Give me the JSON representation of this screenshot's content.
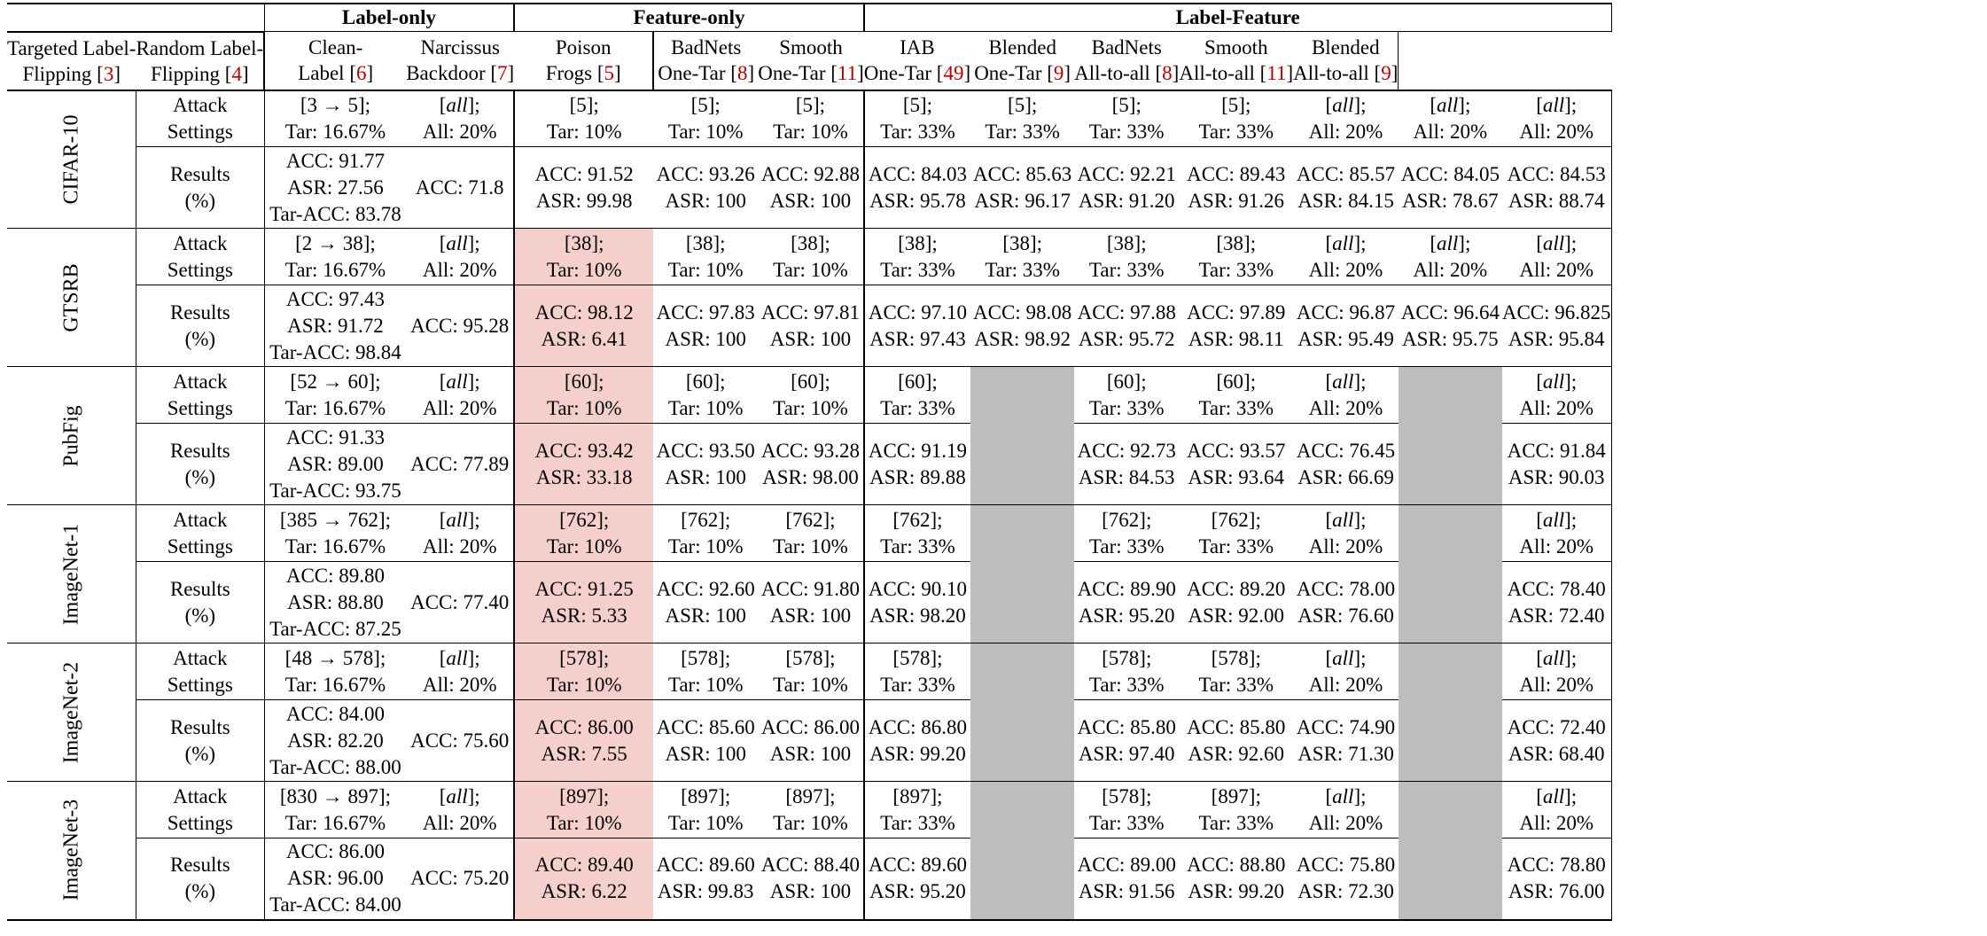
{
  "groups": [
    {
      "label": "Label-only"
    },
    {
      "label": "Feature-only"
    },
    {
      "label": "Label-Feature"
    }
  ],
  "columns": [
    {
      "l1": "Targeted Label-",
      "l2": "Flipping",
      "ref": "3"
    },
    {
      "l1": "Random Label-",
      "l2": "Flipping",
      "ref": "4"
    },
    {
      "l1": "Clean-",
      "l2": "Label",
      "ref": "6"
    },
    {
      "l1": "Narcissus",
      "l2": "Backdoor",
      "ref": "7"
    },
    {
      "l1": "Poison",
      "l2": "Frogs",
      "ref": "5"
    },
    {
      "l1": "BadNets",
      "l2": "One-Tar",
      "ref": "8"
    },
    {
      "l1": "Smooth",
      "l2": "One-Tar",
      "ref": "11"
    },
    {
      "l1": "IAB",
      "l2": "One-Tar",
      "ref": "49"
    },
    {
      "l1": "Blended",
      "l2": "One-Tar",
      "ref": "9"
    },
    {
      "l1": "BadNets",
      "l2": "All-to-all",
      "ref": "8"
    },
    {
      "l1": "Smooth",
      "l2": "All-to-all",
      "ref": "11"
    },
    {
      "l1": "Blended",
      "l2": "All-to-all",
      "ref": "9"
    }
  ],
  "row_labels": {
    "settings_l1": "Attack",
    "settings_l2": "Settings",
    "results_l1": "Results",
    "results_l2": "(%)"
  },
  "datasets": [
    {
      "name": "CIFAR-10",
      "settings": [
        {
          "a": "[3 → 5];",
          "b": "Tar: 16.67%"
        },
        {
          "a": "all",
          "b": "All: 20%",
          "italic": true
        },
        {
          "a": "[5];",
          "b": "Tar: 10%"
        },
        {
          "a": "[5];",
          "b": "Tar: 10%"
        },
        {
          "a": "[5];",
          "b": "Tar: 10%"
        },
        {
          "a": "[5];",
          "b": "Tar: 33%"
        },
        {
          "a": "[5];",
          "b": "Tar: 33%"
        },
        {
          "a": "[5];",
          "b": "Tar: 33%"
        },
        {
          "a": "[5];",
          "b": "Tar: 33%"
        },
        {
          "a": "all",
          "b": "All: 20%",
          "italic": true
        },
        {
          "a": "all",
          "b": "All: 20%",
          "italic": true
        },
        {
          "a": "all",
          "b": "All: 20%",
          "italic": true
        }
      ],
      "results": [
        [
          "ACC: 91.77",
          "ASR: 27.56",
          "Tar-ACC: 83.78"
        ],
        [
          "ACC: 71.8"
        ],
        [
          "ACC: 91.52",
          "ASR: 99.98"
        ],
        [
          "ACC: 93.26",
          "ASR: 100"
        ],
        [
          "ACC: 92.88",
          "ASR: 100"
        ],
        [
          "ACC: 84.03",
          "ASR: 95.78"
        ],
        [
          "ACC: 85.63",
          "ASR: 96.17"
        ],
        [
          "ACC: 92.21",
          "ASR: 91.20"
        ],
        [
          "ACC: 89.43",
          "ASR: 91.26"
        ],
        [
          "ACC: 85.57",
          "ASR: 84.15"
        ],
        [
          "ACC: 84.05",
          "ASR: 78.67"
        ],
        [
          "ACC: 84.53",
          "ASR: 88.74"
        ]
      ],
      "pink_cols": [],
      "gray_cols": []
    },
    {
      "name": "GTSRB",
      "settings": [
        {
          "a": "[2 → 38];",
          "b": "Tar: 16.67%"
        },
        {
          "a": "all",
          "b": "All: 20%",
          "italic": true
        },
        {
          "a": "[38];",
          "b": "Tar: 10%"
        },
        {
          "a": "[38];",
          "b": "Tar: 10%"
        },
        {
          "a": "[38];",
          "b": "Tar: 10%"
        },
        {
          "a": "[38];",
          "b": "Tar: 33%"
        },
        {
          "a": "[38];",
          "b": "Tar: 33%"
        },
        {
          "a": "[38];",
          "b": "Tar: 33%"
        },
        {
          "a": "[38];",
          "b": "Tar: 33%"
        },
        {
          "a": "all",
          "b": "All: 20%",
          "italic": true
        },
        {
          "a": "all",
          "b": "All: 20%",
          "italic": true
        },
        {
          "a": "all",
          "b": "All: 20%",
          "italic": true
        }
      ],
      "results": [
        [
          "ACC: 97.43",
          "ASR: 91.72",
          "Tar-ACC: 98.84"
        ],
        [
          "ACC: 95.28"
        ],
        [
          "ACC: 98.12",
          "ASR: 6.41"
        ],
        [
          "ACC: 97.83",
          "ASR: 100"
        ],
        [
          "ACC: 97.81",
          "ASR: 100"
        ],
        [
          "ACC: 97.10",
          "ASR: 97.43"
        ],
        [
          "ACC: 98.08",
          "ASR: 98.92"
        ],
        [
          "ACC: 97.88",
          "ASR: 95.72"
        ],
        [
          "ACC: 97.89",
          "ASR: 98.11"
        ],
        [
          "ACC: 96.87",
          "ASR: 95.49"
        ],
        [
          "ACC: 96.64",
          "ASR: 95.75"
        ],
        [
          "ACC: 96.825",
          "ASR: 95.84"
        ]
      ],
      "pink_cols": [
        2
      ],
      "gray_cols": []
    },
    {
      "name": "PubFig",
      "settings": [
        {
          "a": "[52 → 60];",
          "b": "Tar: 16.67%"
        },
        {
          "a": "all",
          "b": "All: 20%",
          "italic": true
        },
        {
          "a": "[60];",
          "b": "Tar: 10%"
        },
        {
          "a": "[60];",
          "b": "Tar: 10%"
        },
        {
          "a": "[60];",
          "b": "Tar: 10%"
        },
        {
          "a": "[60];",
          "b": "Tar: 33%"
        },
        null,
        {
          "a": "[60];",
          "b": "Tar: 33%"
        },
        {
          "a": "[60];",
          "b": "Tar: 33%"
        },
        {
          "a": "all",
          "b": "All: 20%",
          "italic": true
        },
        null,
        {
          "a": "all",
          "b": "All: 20%",
          "italic": true
        }
      ],
      "results": [
        [
          "ACC: 91.33",
          "ASR: 89.00",
          "Tar-ACC: 93.75"
        ],
        [
          "ACC: 77.89"
        ],
        [
          "ACC: 93.42",
          "ASR: 33.18"
        ],
        [
          "ACC: 93.50",
          "ASR: 100"
        ],
        [
          "ACC: 93.28",
          "ASR: 98.00"
        ],
        [
          "ACC: 91.19",
          "ASR: 89.88"
        ],
        null,
        [
          "ACC: 92.73",
          "ASR: 84.53"
        ],
        [
          "ACC: 93.57",
          "ASR: 93.64"
        ],
        [
          "ACC: 76.45",
          "ASR: 66.69"
        ],
        null,
        [
          "ACC: 91.84",
          "ASR: 90.03"
        ]
      ],
      "pink_cols": [
        2
      ],
      "gray_cols": [
        6,
        10
      ]
    },
    {
      "name": "ImageNet-1",
      "settings": [
        {
          "a": "[385 → 762];",
          "b": "Tar: 16.67%"
        },
        {
          "a": "all",
          "b": "All: 20%",
          "italic": true
        },
        {
          "a": "[762];",
          "b": "Tar: 10%"
        },
        {
          "a": "[762];",
          "b": "Tar: 10%"
        },
        {
          "a": "[762];",
          "b": "Tar: 10%"
        },
        {
          "a": "[762];",
          "b": "Tar: 33%"
        },
        null,
        {
          "a": "[762];",
          "b": "Tar: 33%"
        },
        {
          "a": "[762];",
          "b": "Tar: 33%"
        },
        {
          "a": "all",
          "b": "All: 20%",
          "italic": true
        },
        null,
        {
          "a": "all",
          "b": "All: 20%",
          "italic": true
        }
      ],
      "results": [
        [
          "ACC: 89.80",
          "ASR: 88.80",
          "Tar-ACC: 87.25"
        ],
        [
          "ACC: 77.40"
        ],
        [
          "ACC: 91.25",
          "ASR: 5.33"
        ],
        [
          "ACC: 92.60",
          "ASR: 100"
        ],
        [
          "ACC: 91.80",
          "ASR: 100"
        ],
        [
          "ACC: 90.10",
          "ASR: 98.20"
        ],
        null,
        [
          "ACC: 89.90",
          "ASR: 95.20"
        ],
        [
          "ACC: 89.20",
          "ASR: 92.00"
        ],
        [
          "ACC: 78.00",
          "ASR: 76.60"
        ],
        null,
        [
          "ACC: 78.40",
          "ASR: 72.40"
        ]
      ],
      "pink_cols": [
        2
      ],
      "gray_cols": [
        6,
        10
      ]
    },
    {
      "name": "ImageNet-2",
      "settings": [
        {
          "a": "[48 → 578];",
          "b": "Tar: 16.67%"
        },
        {
          "a": "all",
          "b": "All: 20%",
          "italic": true
        },
        {
          "a": "[578];",
          "b": "Tar: 10%"
        },
        {
          "a": "[578];",
          "b": "Tar: 10%"
        },
        {
          "a": "[578];",
          "b": "Tar: 10%"
        },
        {
          "a": "[578];",
          "b": "Tar: 33%"
        },
        null,
        {
          "a": "[578];",
          "b": "Tar: 33%"
        },
        {
          "a": "[578];",
          "b": "Tar: 33%"
        },
        {
          "a": "all",
          "b": "All: 20%",
          "italic": true
        },
        null,
        {
          "a": "all",
          "b": "All: 20%",
          "italic": true
        }
      ],
      "results": [
        [
          "ACC: 84.00",
          "ASR: 82.20",
          "Tar-ACC: 88.00"
        ],
        [
          "ACC: 75.60"
        ],
        [
          "ACC: 86.00",
          "ASR: 7.55"
        ],
        [
          "ACC: 85.60",
          "ASR: 100"
        ],
        [
          "ACC: 86.00",
          "ASR: 100"
        ],
        [
          "ACC: 86.80",
          "ASR: 99.20"
        ],
        null,
        [
          "ACC: 85.80",
          "ASR: 97.40"
        ],
        [
          "ACC: 85.80",
          "ASR: 92.60"
        ],
        [
          "ACC: 74.90",
          "ASR: 71.30"
        ],
        null,
        [
          "ACC: 72.40",
          "ASR: 68.40"
        ]
      ],
      "pink_cols": [
        2
      ],
      "gray_cols": [
        6,
        10
      ]
    },
    {
      "name": "ImageNet-3",
      "settings": [
        {
          "a": "[830 → 897];",
          "b": "Tar: 16.67%"
        },
        {
          "a": "all",
          "b": "All: 20%",
          "italic": true
        },
        {
          "a": "[897];",
          "b": "Tar: 10%"
        },
        {
          "a": "[897];",
          "b": "Tar: 10%"
        },
        {
          "a": "[897];",
          "b": "Tar: 10%"
        },
        {
          "a": "[897];",
          "b": "Tar: 33%"
        },
        null,
        {
          "a": "[578];",
          "b": "Tar: 33%"
        },
        {
          "a": "[897];",
          "b": "Tar: 33%"
        },
        {
          "a": "all",
          "b": "All: 20%",
          "italic": true
        },
        null,
        {
          "a": "all",
          "b": "All: 20%",
          "italic": true
        }
      ],
      "results": [
        [
          "ACC: 86.00",
          "ASR: 96.00",
          "Tar-ACC: 84.00"
        ],
        [
          "ACC: 75.20"
        ],
        [
          "ACC: 89.40",
          "ASR: 6.22"
        ],
        [
          "ACC: 89.60",
          "ASR: 99.83"
        ],
        [
          "ACC: 88.40",
          "ASR: 100"
        ],
        [
          "ACC: 89.60",
          "ASR: 95.20"
        ],
        null,
        [
          "ACC: 89.00",
          "ASR: 91.56"
        ],
        [
          "ACC: 88.80",
          "ASR: 99.20"
        ],
        [
          "ACC: 75.80",
          "ASR: 72.30"
        ],
        null,
        [
          "ACC: 78.80",
          "ASR: 76.00"
        ]
      ],
      "pink_cols": [
        2
      ],
      "gray_cols": [
        6,
        10
      ]
    }
  ]
}
